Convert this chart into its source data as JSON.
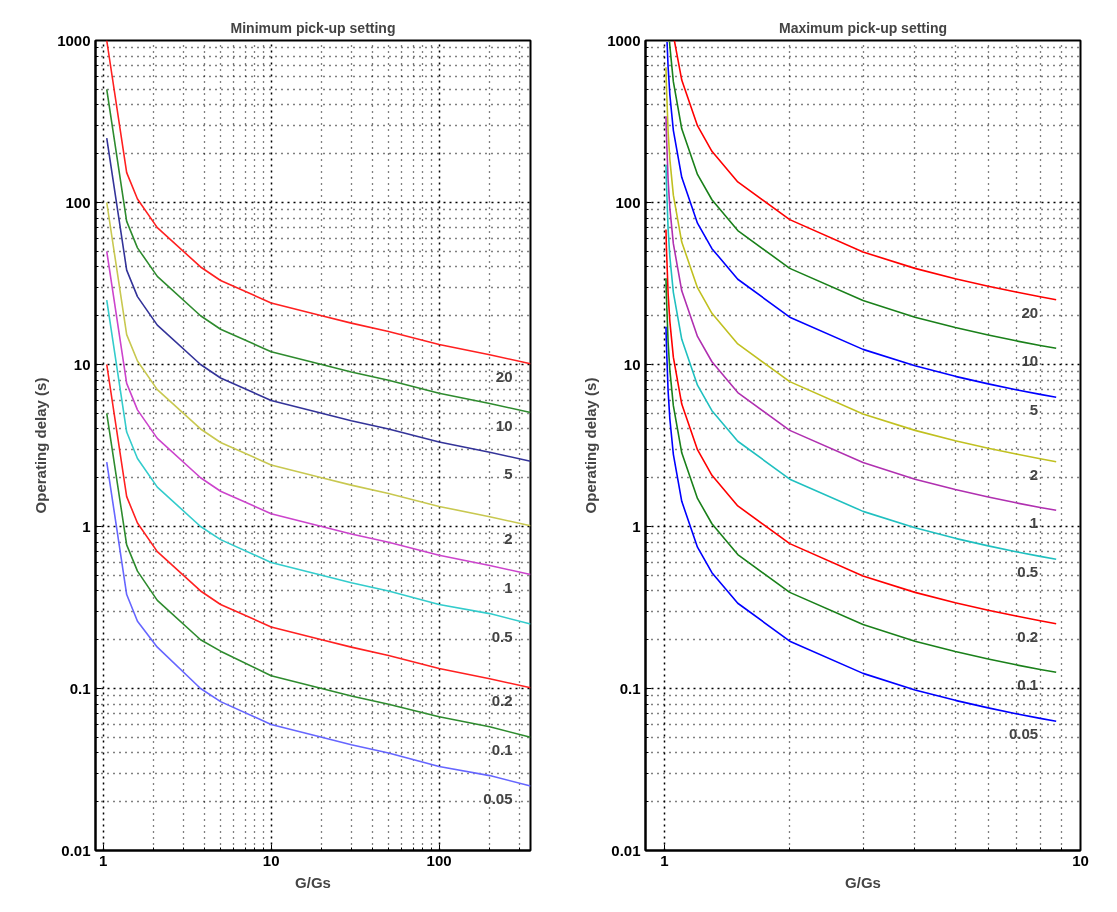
{
  "chart_data": [
    {
      "type": "line",
      "title": "Minimum pick-up setting",
      "xlabel": "G/Gs",
      "ylabel": "Operating delay (s)",
      "log": "xy",
      "xlim": [
        0.9,
        350
      ],
      "ylim": [
        0.01,
        1000
      ],
      "xticks": [
        1,
        10,
        100
      ],
      "yticks": [
        0.01,
        0.1,
        1,
        10,
        100,
        1000
      ],
      "grid": true,
      "x": [
        1.05,
        1.38,
        1.6,
        2.1,
        3.8,
        5,
        10,
        20,
        30,
        50,
        100,
        200,
        350
      ],
      "series": [
        {
          "name": "20",
          "color": "#ff2020",
          "values": [
            1000,
            153,
            105,
            70,
            40,
            33,
            24,
            20,
            18,
            16,
            13.3,
            11.5,
            10.1
          ]
        },
        {
          "name": "10",
          "color": "#2e8b2e",
          "values": [
            500,
            76.5,
            52.5,
            35,
            20,
            16.5,
            12,
            10,
            9,
            8,
            6.65,
            5.75,
            5.05
          ]
        },
        {
          "name": "5",
          "color": "#333399",
          "values": [
            250,
            38.25,
            26.25,
            17.5,
            10,
            8.25,
            6,
            5,
            4.5,
            4,
            3.325,
            2.875,
            2.525
          ]
        },
        {
          "name": "2",
          "color": "#c8c850",
          "values": [
            100,
            15.3,
            10.5,
            7,
            4,
            3.3,
            2.4,
            2,
            1.8,
            1.6,
            1.33,
            1.15,
            1.01
          ]
        },
        {
          "name": "1",
          "color": "#cc44cc",
          "values": [
            50,
            7.65,
            5.25,
            3.5,
            2,
            1.65,
            1.2,
            1,
            0.9,
            0.8,
            0.665,
            0.575,
            0.505
          ]
        },
        {
          "name": "0.5",
          "color": "#33cccc",
          "values": [
            25,
            3.83,
            2.63,
            1.75,
            1,
            0.83,
            0.6,
            0.5,
            0.45,
            0.4,
            0.33,
            0.29,
            0.25
          ]
        },
        {
          "name": "0.2",
          "color": "#ff2020",
          "values": [
            10,
            1.53,
            1.05,
            0.7,
            0.4,
            0.33,
            0.24,
            0.2,
            0.18,
            0.16,
            0.133,
            0.115,
            0.101
          ]
        },
        {
          "name": "0.1",
          "color": "#2e8b2e",
          "values": [
            5,
            0.77,
            0.53,
            0.35,
            0.2,
            0.17,
            0.12,
            0.1,
            0.09,
            0.08,
            0.067,
            0.058,
            0.05
          ]
        },
        {
          "name": "0.05",
          "color": "#6666ff",
          "values": [
            2.5,
            0.38,
            0.26,
            0.18,
            0.1,
            0.083,
            0.06,
            0.05,
            0.045,
            0.04,
            0.033,
            0.029,
            0.025
          ]
        }
      ]
    },
    {
      "type": "line",
      "title": "Maximum pick-up setting",
      "xlabel": "G/Gs",
      "ylabel": "Operating delay (s)",
      "log": "xy",
      "xlim": [
        0.9,
        10
      ],
      "ylim": [
        0.01,
        1000
      ],
      "xticks": [
        1,
        10
      ],
      "yticks": [
        0.01,
        0.1,
        1,
        10,
        100,
        1000
      ],
      "grid": true,
      "series": [
        {
          "name": "20",
          "color": "#ff0000",
          "x": [
            1.056,
            1.1,
            1.2,
            1.3,
            1.5,
            2,
            3,
            4,
            5,
            6,
            7,
            8,
            8.74
          ],
          "values": [
            998,
            570,
            298,
            207,
            134,
            78.4,
            49.5,
            39.2,
            33.8,
            30.4,
            28.0,
            26.2,
            25.1
          ]
        },
        {
          "name": "10",
          "color": "#1a801a",
          "x": [
            1.028,
            1.03,
            1.05,
            1.1,
            1.2,
            1.3,
            1.5,
            2,
            3,
            4,
            5,
            6,
            7,
            8,
            8.74
          ],
          "values": [
            985,
            920,
            557,
            285,
            149,
            104,
            67.1,
            39.2,
            24.8,
            19.6,
            16.9,
            15.2,
            14.0,
            13.1,
            12.6
          ]
        },
        {
          "name": "5",
          "color": "#0000ff",
          "x": [
            1.014,
            1.02,
            1.03,
            1.05,
            1.1,
            1.2,
            1.3,
            1.5,
            2,
            3,
            4,
            5,
            6,
            7,
            8,
            8.74
          ],
          "values": [
            978,
            685,
            460,
            279,
            143,
            74.5,
            51.9,
            33.6,
            19.6,
            12.4,
            9.81,
            8.45,
            7.59,
            6.99,
            6.54,
            6.28
          ]
        },
        {
          "name": "2",
          "color": "#c0c020",
          "x": [
            1.008,
            1.01,
            1.02,
            1.03,
            1.05,
            1.1,
            1.2,
            1.3,
            1.5,
            2,
            3,
            4,
            5,
            6,
            7,
            8,
            8.74
          ],
          "values": [
            683,
            546,
            274,
            184,
            111,
            57.0,
            29.8,
            20.7,
            13.4,
            7.84,
            4.95,
            3.92,
            3.38,
            3.04,
            2.8,
            2.62,
            2.51
          ]
        },
        {
          "name": "1",
          "color": "#b030b0",
          "x": [
            1.008,
            1.01,
            1.02,
            1.03,
            1.05,
            1.1,
            1.2,
            1.3,
            1.5,
            2,
            3,
            4,
            5,
            6,
            7,
            8,
            8.74
          ],
          "values": [
            341,
            273,
            137,
            92,
            55.7,
            28.5,
            14.9,
            10.4,
            6.71,
            3.92,
            2.48,
            1.96,
            1.69,
            1.52,
            1.4,
            1.31,
            1.26
          ]
        },
        {
          "name": "0.5",
          "color": "#20c0c0",
          "x": [
            1.008,
            1.01,
            1.02,
            1.03,
            1.05,
            1.1,
            1.2,
            1.3,
            1.5,
            2,
            3,
            4,
            5,
            6,
            7,
            8,
            8.74
          ],
          "values": [
            171,
            137,
            68.5,
            46,
            27.9,
            14.3,
            7.45,
            5.19,
            3.36,
            1.96,
            1.24,
            0.981,
            0.845,
            0.759,
            0.699,
            0.654,
            0.628
          ]
        },
        {
          "name": "0.2",
          "color": "#ff0000",
          "x": [
            1.008,
            1.01,
            1.02,
            1.03,
            1.05,
            1.1,
            1.2,
            1.3,
            1.5,
            2,
            3,
            4,
            5,
            6,
            7,
            8,
            8.74
          ],
          "values": [
            68.2,
            54.6,
            27.4,
            18.4,
            11.1,
            5.7,
            2.98,
            2.07,
            1.34,
            0.784,
            0.495,
            0.392,
            0.338,
            0.304,
            0.28,
            0.262,
            0.251
          ]
        },
        {
          "name": "0.1",
          "color": "#1a801a",
          "x": [
            1.008,
            1.01,
            1.02,
            1.03,
            1.05,
            1.1,
            1.2,
            1.3,
            1.5,
            2,
            3,
            4,
            5,
            6,
            7,
            8,
            8.74
          ],
          "values": [
            34.1,
            27.3,
            13.7,
            9.2,
            5.57,
            2.85,
            1.49,
            1.04,
            0.671,
            0.392,
            0.248,
            0.196,
            0.169,
            0.152,
            0.14,
            0.131,
            0.126
          ]
        },
        {
          "name": "0.05",
          "color": "#0000ff",
          "x": [
            1.008,
            1.01,
            1.02,
            1.03,
            1.05,
            1.1,
            1.2,
            1.3,
            1.5,
            2,
            3,
            4,
            5,
            6,
            7,
            8,
            8.74
          ],
          "values": [
            17.1,
            13.7,
            6.85,
            4.6,
            2.79,
            1.43,
            0.745,
            0.519,
            0.336,
            0.196,
            0.124,
            0.098,
            0.0845,
            0.0759,
            0.0699,
            0.0654,
            0.0628
          ]
        }
      ]
    }
  ]
}
